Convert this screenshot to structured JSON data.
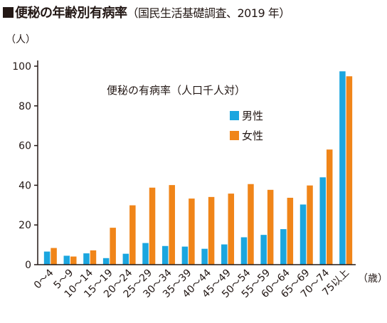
{
  "title_main": "便秘の年齢別有病率",
  "title_sub": "（国民生活基礎調査、2019 年）",
  "chart_data": {
    "type": "bar",
    "subtitle": "便秘の有病率（人口千人対）",
    "ylabel": "（人）",
    "xlabel": "（歳）",
    "ylim": [
      0,
      100
    ],
    "yticks": [
      "0",
      "20",
      "40",
      "60",
      "80",
      "100"
    ],
    "categories": [
      "0〜4",
      "5〜9",
      "10〜14",
      "15〜19",
      "20〜24",
      "25〜29",
      "30〜34",
      "35〜39",
      "40〜44",
      "45〜49",
      "50〜54",
      "55〜59",
      "60〜64",
      "65〜69",
      "70〜74",
      "75以上"
    ],
    "series": [
      {
        "name": "男性",
        "color": "#1BA6DF",
        "values": [
          6.6,
          4.5,
          5.7,
          3.3,
          5.5,
          10.9,
          9.4,
          9.1,
          8.0,
          10.2,
          13.8,
          15.0,
          17.9,
          30.3,
          44.0,
          97.4
        ]
      },
      {
        "name": "女性",
        "color": "#F08519",
        "values": [
          8.4,
          4.1,
          7.2,
          18.6,
          29.9,
          38.8,
          40.1,
          33.3,
          34.1,
          35.8,
          40.6,
          37.7,
          33.7,
          39.9,
          58.0,
          94.9
        ]
      }
    ],
    "legend": "top-right",
    "grid": false
  }
}
